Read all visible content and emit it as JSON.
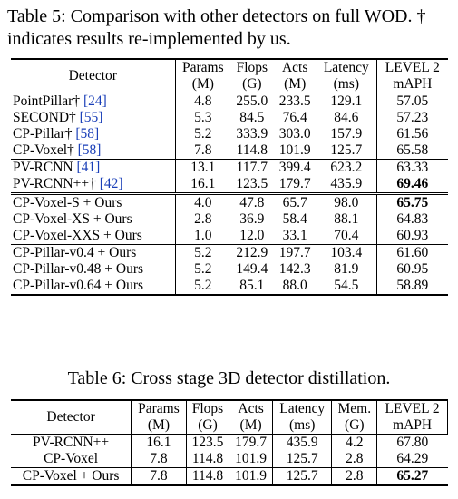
{
  "table5": {
    "caption": "Table 5: Comparison with other detectors on full WOD. † indicates results re-implemented by us.",
    "header_top": [
      "Detector",
      "Params",
      "Flops",
      "Acts",
      "Latency",
      "LEVEL 2"
    ],
    "header_bottom": [
      "(M)",
      "(G)",
      "(M)",
      "(ms)",
      "mAPH"
    ],
    "groups": [
      [
        {
          "name": "PointPillar†",
          "cite": "[24]",
          "params": "4.8",
          "flops": "255.0",
          "acts": "233.5",
          "latency": "129.1",
          "maph": "57.05",
          "bold": false
        },
        {
          "name": "SECOND†",
          "cite": "[55]",
          "params": "5.3",
          "flops": "84.5",
          "acts": "76.4",
          "latency": "84.6",
          "maph": "57.23",
          "bold": false
        },
        {
          "name": "CP-Pillar†",
          "cite": "[58]",
          "params": "5.2",
          "flops": "333.9",
          "acts": "303.0",
          "latency": "157.9",
          "maph": "61.56",
          "bold": false
        },
        {
          "name": "CP-Voxel†",
          "cite": "[58]",
          "params": "7.8",
          "flops": "114.8",
          "acts": "101.9",
          "latency": "125.7",
          "maph": "65.58",
          "bold": false
        }
      ],
      [
        {
          "name": "PV-RCNN",
          "cite": "[41]",
          "params": "13.1",
          "flops": "117.7",
          "acts": "399.4",
          "latency": "623.2",
          "maph": "63.33",
          "bold": false
        },
        {
          "name": "PV-RCNN++†",
          "cite": "[42]",
          "params": "16.1",
          "flops": "123.5",
          "acts": "179.7",
          "latency": "435.9",
          "maph": "69.46",
          "bold": true
        }
      ],
      [
        {
          "name": "CP-Voxel-S + Ours",
          "cite": "",
          "params": "4.0",
          "flops": "47.8",
          "acts": "65.7",
          "latency": "98.0",
          "maph": "65.75",
          "bold": true
        },
        {
          "name": "CP-Voxel-XS + Ours",
          "cite": "",
          "params": "2.8",
          "flops": "36.9",
          "acts": "58.4",
          "latency": "88.1",
          "maph": "64.83",
          "bold": false
        },
        {
          "name": "CP-Voxel-XXS + Ours",
          "cite": "",
          "params": "1.0",
          "flops": "12.0",
          "acts": "33.1",
          "latency": "70.4",
          "maph": "60.93",
          "bold": false
        }
      ],
      [
        {
          "name": "CP-Pillar-v0.4 + Ours",
          "cite": "",
          "params": "5.2",
          "flops": "212.9",
          "acts": "197.7",
          "latency": "103.4",
          "maph": "61.60",
          "bold": false
        },
        {
          "name": "CP-Pillar-v0.48 + Ours",
          "cite": "",
          "params": "5.2",
          "flops": "149.4",
          "acts": "142.3",
          "latency": "81.9",
          "maph": "60.95",
          "bold": false
        },
        {
          "name": "CP-Pillar-v0.64 + Ours",
          "cite": "",
          "params": "5.2",
          "flops": "85.1",
          "acts": "88.0",
          "latency": "54.5",
          "maph": "58.89",
          "bold": false
        }
      ]
    ]
  },
  "table6": {
    "caption": "Table 6: Cross stage 3D detector distillation.",
    "header_top": [
      "Detector",
      "Params",
      "Flops",
      "Acts",
      "Latency",
      "Mem.",
      "LEVEL 2"
    ],
    "header_bottom": [
      "(M)",
      "(G)",
      "(M)",
      "(ms)",
      "(G)",
      "mAPH"
    ],
    "rows": [
      {
        "name": "PV-RCNN++",
        "params": "16.1",
        "flops": "123.5",
        "acts": "179.7",
        "latency": "435.9",
        "mem": "4.2",
        "maph": "67.80",
        "bold": false
      },
      {
        "name": "CP-Voxel",
        "params": "7.8",
        "flops": "114.8",
        "acts": "101.9",
        "latency": "125.7",
        "mem": "2.8",
        "maph": "64.29",
        "bold": false
      },
      {
        "name": "CP-Voxel + Ours",
        "params": "7.8",
        "flops": "114.8",
        "acts": "101.9",
        "latency": "125.7",
        "mem": "2.8",
        "maph": "65.27",
        "bold": true
      }
    ]
  }
}
